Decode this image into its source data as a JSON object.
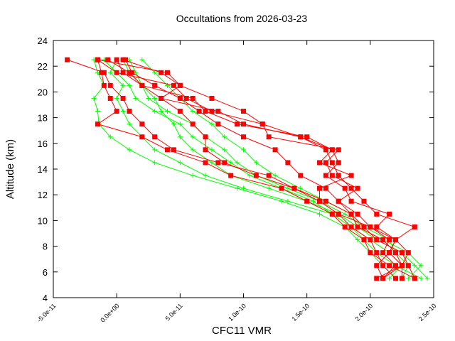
{
  "chart_data": {
    "type": "line",
    "title": "Occultations from 2026-03-23",
    "xlabel": "CFC11 VMR",
    "ylabel": "Altitude (km)",
    "xlim": [
      -5e-11,
      2.5e-10
    ],
    "ylim": [
      4,
      24
    ],
    "xticks": [
      -5e-11,
      0,
      5e-11,
      1e-10,
      1.5e-10,
      2e-10,
      2.5e-10
    ],
    "xtick_labels": [
      "-5.0e-11",
      "0.0e+00",
      "5.0e-11",
      "1.0e-10",
      "1.5e-10",
      "2.0e-10",
      "2.5e-10"
    ],
    "yticks": [
      4,
      6,
      8,
      10,
      12,
      14,
      16,
      18,
      20,
      22,
      24
    ],
    "grid": false,
    "colors": {
      "red": "#ff0000",
      "green": "#00ff00"
    },
    "altitudes": [
      22.5,
      21.5,
      20.5,
      19.5,
      18.5,
      17.5,
      16.5,
      15.5,
      14.5,
      13.5,
      12.5,
      11.5,
      10.5,
      9.5,
      8.5,
      7.5,
      6.5,
      5.5
    ],
    "value_unit_scale": 1e-10,
    "red_series": [
      [
        -0.39,
        -0.1,
        -0.05,
        0.05,
        0.1,
        0.2,
        0.3,
        0.45,
        0.8,
        1.2,
        1.4,
        1.6,
        1.75,
        1.85,
        2.0,
        2.05,
        2.1,
        2.2
      ],
      [
        -0.15,
        -0.12,
        -0.1,
        -0.05,
        0.0,
        -0.15,
        0.2,
        0.4,
        0.7,
        0.9,
        1.3,
        1.5,
        1.7,
        1.8,
        1.95,
        2.0,
        2.15,
        2.35
      ],
      [
        0.0,
        0.05,
        0.2,
        0.35,
        0.5,
        0.6,
        0.7,
        0.7,
        0.85,
        1.1,
        1.4,
        1.65,
        1.85,
        1.9,
        2.1,
        2.2,
        2.25,
        2.25
      ],
      [
        0.07,
        0.12,
        0.3,
        0.5,
        0.65,
        0.8,
        1.0,
        1.25,
        1.35,
        1.45,
        1.65,
        1.75,
        1.9,
        2.0,
        2.15,
        2.1,
        2.2,
        2.1
      ],
      [
        -0.15,
        0.4,
        0.5,
        0.75,
        1.0,
        1.15,
        1.45,
        1.65,
        1.7,
        1.75,
        1.85,
        1.95,
        2.05,
        2.35,
        2.2,
        2.15,
        2.05,
        2.1
      ],
      [
        -0.07,
        0.1,
        0.2,
        0.6,
        0.7,
        0.95,
        1.5,
        1.7,
        1.6,
        1.85,
        1.6,
        1.6,
        1.75,
        2.0,
        2.2,
        2.15,
        2.25,
        2.1
      ],
      [
        -0.15,
        0.0,
        0.45,
        0.55,
        0.75,
        1.15,
        1.2,
        1.75,
        1.65,
        1.7,
        1.9,
        1.75,
        1.85,
        1.95,
        2.05,
        2.25,
        2.3,
        2.35
      ],
      [
        0.05,
        0.35,
        0.5,
        0.35,
        0.8,
        1.0,
        1.45,
        1.7,
        1.75,
        1.65,
        1.8,
        1.85,
        2.15,
        2.05,
        2.2,
        2.3,
        2.25,
        2.05
      ]
    ],
    "green_series": [
      [
        -0.18,
        -0.15,
        -0.1,
        -0.18,
        -0.15,
        -0.14,
        -0.05,
        0.1,
        0.3,
        0.6,
        0.95,
        1.3,
        1.6,
        1.8,
        1.9,
        2.0,
        2.1,
        2.2
      ],
      [
        0.0,
        -0.05,
        0.05,
        0.0,
        0.05,
        0.1,
        0.2,
        0.3,
        0.5,
        0.7,
        1.0,
        1.35,
        1.7,
        1.85,
        1.95,
        2.05,
        2.2,
        2.4
      ],
      [
        0.1,
        0.15,
        0.2,
        0.3,
        0.35,
        0.45,
        0.5,
        0.6,
        0.75,
        0.9,
        1.2,
        1.5,
        1.75,
        1.9,
        2.05,
        2.25,
        2.35,
        2.45
      ],
      [
        0.2,
        0.3,
        0.4,
        0.5,
        0.6,
        0.75,
        0.85,
        1.0,
        1.1,
        1.25,
        1.45,
        1.65,
        1.85,
        1.9,
        2.1,
        2.3,
        2.4,
        2.3
      ],
      [
        0.05,
        0.1,
        0.2,
        0.25,
        0.4,
        0.6,
        0.7,
        0.85,
        0.95,
        1.1,
        1.35,
        1.6,
        1.8,
        1.95,
        2.15,
        2.2,
        2.3,
        2.25
      ],
      [
        -0.1,
        0.0,
        0.1,
        0.15,
        0.3,
        0.5,
        0.6,
        0.75,
        0.9,
        1.05,
        1.3,
        1.55,
        1.7,
        1.85,
        2.0,
        2.15,
        2.25,
        2.15
      ]
    ]
  }
}
